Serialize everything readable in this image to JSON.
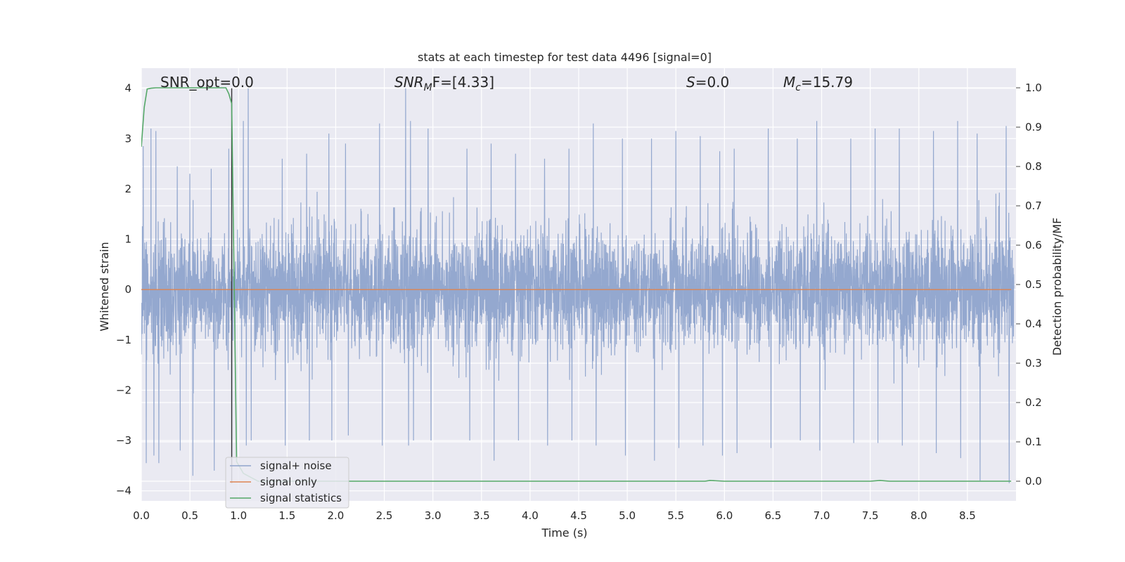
{
  "chart_data": {
    "type": "line",
    "title": "stats at each timestep for test data 4496 [signal=0]",
    "xlabel": "Time (s)",
    "ylabel_left": "Whitened strain",
    "ylabel_right": "Detection probability/MF",
    "xlim": [
      0.0,
      9.0
    ],
    "ylim_left": [
      -4.2,
      4.4
    ],
    "ylim_right": [
      -0.05,
      1.05
    ],
    "x_ticks": [
      0.0,
      0.5,
      1.0,
      1.5,
      2.0,
      2.5,
      3.0,
      3.5,
      4.0,
      4.5,
      5.0,
      5.5,
      6.0,
      6.5,
      7.0,
      7.5,
      8.0,
      8.5
    ],
    "x_tick_labels": [
      "0.0",
      "0.5",
      "1.0",
      "1.5",
      "2.0",
      "2.5",
      "3.0",
      "3.5",
      "4.0",
      "4.5",
      "5.0",
      "5.5",
      "6.0",
      "6.5",
      "7.0",
      "7.5",
      "8.0",
      "8.5"
    ],
    "y_left_ticks": [
      -4,
      -3,
      -2,
      -1,
      0,
      1,
      2,
      3,
      4
    ],
    "y_left_tick_labels": [
      "−4",
      "−3",
      "−2",
      "−1",
      "0",
      "1",
      "2",
      "3",
      "4"
    ],
    "y_right_ticks": [
      0.0,
      0.1,
      0.2,
      0.3,
      0.4,
      0.5,
      0.6,
      0.7,
      0.8,
      0.9,
      1.0
    ],
    "y_right_tick_labels": [
      "0.0",
      "0.1",
      "0.2",
      "0.3",
      "0.4",
      "0.5",
      "0.6",
      "0.7",
      "0.8",
      "0.9",
      "1.0"
    ],
    "grid": true,
    "legend_position": "lower-left",
    "annotations": {
      "snr_opt": "SNR_opt=0.0",
      "snr_mf_main": "SNR",
      "snr_mf_sub": "M",
      "snr_mf_rest": "F=[4.33]",
      "s_main": "S",
      "s_rest": "=0.0",
      "mc_main": "M",
      "mc_sub": "c",
      "mc_rest": "=15.79"
    },
    "series": [
      {
        "name": "signal+ noise",
        "axis": "left",
        "color": "#8fa4cc",
        "note_on_envelope": "dense whitened noise trace; typical band about ±1.3 with spikes",
        "spike_times": [
          0.02,
          0.1,
          0.15,
          0.37,
          0.5,
          0.72,
          0.9,
          1.05,
          1.1,
          1.45,
          1.7,
          1.93,
          2.1,
          2.45,
          2.72,
          2.77,
          2.95,
          3.35,
          3.6,
          3.85,
          4.15,
          4.4,
          4.65,
          4.95,
          5.25,
          5.5,
          5.75,
          5.95,
          6.1,
          6.45,
          6.75,
          6.95,
          7.3,
          7.55,
          7.8,
          8.15,
          8.4,
          8.6,
          8.9
        ],
        "spike_highs": [
          2.85,
          3.2,
          3.15,
          2.45,
          2.3,
          2.4,
          2.8,
          3.35,
          4.0,
          2.6,
          2.7,
          3.1,
          2.9,
          3.3,
          4.0,
          3.35,
          3.2,
          2.8,
          2.9,
          2.7,
          2.6,
          2.8,
          3.3,
          3.0,
          3.0,
          3.15,
          3.05,
          2.75,
          2.8,
          3.2,
          3.0,
          3.35,
          3.0,
          3.2,
          3.2,
          3.15,
          3.35,
          3.1,
          3.25
        ],
        "spike_lows": [
          -3.45,
          -3.3,
          -3.45,
          -3.2,
          -3.7,
          -3.6,
          -3.3,
          -3.1,
          -3.0,
          -3.1,
          -3.0,
          -3.0,
          -2.9,
          -3.1,
          -3.1,
          -3.0,
          -3.0,
          -3.0,
          -3.4,
          -3.0,
          -3.1,
          -3.0,
          -3.1,
          -3.3,
          -3.4,
          -3.15,
          -3.1,
          -3.3,
          -3.25,
          -3.15,
          -3.0,
          -3.2,
          -3.05,
          -3.05,
          -3.1,
          -3.25,
          -3.35,
          -3.8,
          -3.85
        ]
      },
      {
        "name": "signal only",
        "axis": "left",
        "color": "#dd8452",
        "x": [
          0.0,
          8.95
        ],
        "y": [
          0.0,
          0.0
        ]
      },
      {
        "name": "signal statistics",
        "axis": "right",
        "color": "#55a868",
        "x": [
          0.0,
          0.03,
          0.06,
          0.1,
          0.15,
          0.3,
          0.5,
          0.7,
          0.87,
          0.9,
          0.93,
          0.95,
          0.98,
          1.05,
          1.2,
          2.0,
          4.0,
          5.8,
          5.85,
          6.0,
          7.5,
          7.6,
          7.7,
          8.95
        ],
        "y": [
          0.85,
          0.95,
          0.997,
          0.999,
          1.0,
          1.0,
          1.0,
          1.0,
          1.0,
          0.985,
          0.96,
          0.6,
          0.05,
          0.02,
          0.0,
          0.0,
          0.0,
          0.0,
          0.002,
          0.0,
          0.0,
          0.002,
          0.0,
          0.0
        ]
      }
    ],
    "vertical_marker": {
      "x": 0.93,
      "color": "#333333"
    }
  }
}
